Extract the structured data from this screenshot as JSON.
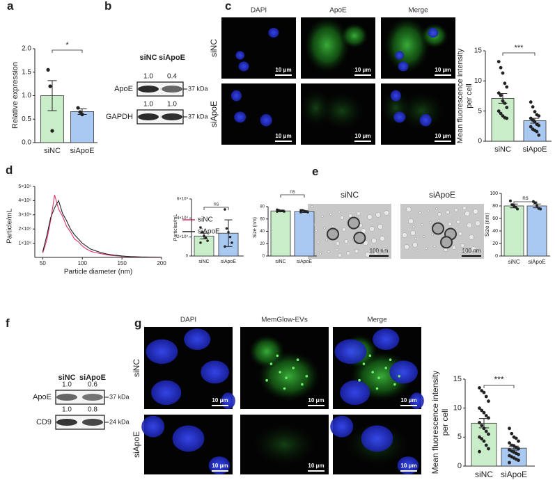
{
  "panels": [
    "a",
    "b",
    "c",
    "d",
    "e",
    "f",
    "g"
  ],
  "blot_b": {
    "lanes": [
      "siNC",
      "siApoE"
    ],
    "rows": [
      {
        "label": "ApoE",
        "values": [
          "1.0",
          "0.4"
        ],
        "marker": "37 kDa"
      },
      {
        "label": "GAPDH",
        "values": [
          "1.0",
          "1.0"
        ],
        "marker": "37 kDa"
      }
    ]
  },
  "images_c": {
    "columns": [
      "DAPI",
      "ApoE",
      "Merge"
    ],
    "rows": [
      "siNC",
      "siApoE"
    ],
    "scale_bar": "10 μm"
  },
  "images_e": {
    "labels": [
      "siNC",
      "siApoE"
    ],
    "scale_bar": "100 nm"
  },
  "blot_f": {
    "lanes": [
      "siNC",
      "siApoE"
    ],
    "rows": [
      {
        "label": "ApoE",
        "values": [
          "1.0",
          "0.6"
        ],
        "marker": "37 kDa"
      },
      {
        "label": "CD9",
        "values": [
          "1.0",
          "0.8"
        ],
        "marker": "24 kDa"
      }
    ]
  },
  "images_g": {
    "columns": [
      "DAPI",
      "MemGlow-EVs",
      "Merge"
    ],
    "rows": [
      "siNC",
      "siApoE"
    ],
    "scale_bar": "10 μm"
  },
  "chart_data": [
    {
      "type": "bar",
      "y_label": [
        "Relative expression"
      ],
      "categories": [
        "siNC",
        "siApoE"
      ],
      "colors": [
        "#c9ecc9",
        "#a9c9f3"
      ],
      "values": [
        1.0,
        0.66
      ],
      "errors": [
        0.32,
        0.06
      ],
      "points": [
        [
          1.55,
          1.2,
          0.25
        ],
        [
          0.74,
          0.65,
          0.6
        ]
      ],
      "ylim": [
        0,
        2
      ],
      "yticks": [
        {
          "value": 0,
          "label": "0.0"
        },
        {
          "value": 0.5,
          "label": "0.5"
        },
        {
          "value": 1,
          "label": "1.0"
        },
        {
          "value": 1.5,
          "label": "1.5"
        },
        {
          "value": 2,
          "label": "2.0"
        }
      ],
      "significance": "*"
    },
    {
      "type": "bar",
      "y_label": [
        "Mean fluorescence intensity",
        "per cell"
      ],
      "categories": [
        "siNC",
        "siApoE"
      ],
      "colors": [
        "#c9ecc9",
        "#a9c9f3"
      ],
      "values": [
        7.1,
        3.4
      ],
      "errors": [
        0.8,
        0.4
      ],
      "points": [
        [
          13.2,
          12.2,
          11.3,
          9.6,
          9.0,
          8.0,
          7.6,
          6.7,
          6.3,
          5.6,
          5.0,
          4.6,
          4.2,
          3.9,
          3.8
        ],
        [
          6.5,
          5.7,
          4.9,
          4.4,
          4.2,
          3.8,
          3.5,
          3.2,
          2.8,
          2.6,
          2.4,
          2.0,
          1.8,
          1.6,
          1.0
        ]
      ],
      "ylim": [
        0,
        15
      ],
      "yticks": [
        0,
        5,
        10,
        15
      ],
      "significance": "***"
    },
    {
      "type": "line",
      "x_label": "Particle diameter (nm)",
      "y_label": "Particle/mL",
      "x": [
        50,
        55,
        60,
        65,
        70,
        75,
        80,
        85,
        90,
        95,
        100,
        105,
        110,
        115,
        120,
        125,
        130,
        135,
        140,
        145,
        150,
        155,
        160,
        165,
        170,
        175,
        180,
        185,
        190,
        195,
        200
      ],
      "series": [
        {
          "name": "siNC",
          "color": "#e0306f",
          "values": [
            300000,
            1200000,
            2600000,
            4400000,
            3400000,
            2900000,
            2200000,
            1800000,
            1300000,
            1100000,
            800000,
            600000,
            450000,
            350000,
            300000,
            250000,
            200000,
            150000,
            120000,
            100000,
            80000,
            60000,
            50000,
            40000,
            30000,
            20000,
            20000,
            10000,
            10000,
            10000,
            0
          ]
        },
        {
          "name": "siApoE",
          "color": "#222222",
          "values": [
            400000,
            1500000,
            2800000,
            3500000,
            4000000,
            3100000,
            2600000,
            2000000,
            1600000,
            1300000,
            1000000,
            800000,
            600000,
            500000,
            400000,
            320000,
            250000,
            200000,
            160000,
            130000,
            100000,
            80000,
            60000,
            50000,
            40000,
            30000,
            30000,
            20000,
            20000,
            10000,
            10000
          ]
        }
      ],
      "xlim": [
        40,
        200
      ],
      "xticks": [
        50,
        100,
        150,
        200
      ],
      "ylim": [
        0,
        5000000
      ],
      "yticks": [
        {
          "value": 1000000,
          "label": "1×10⁶"
        },
        {
          "value": 2000000,
          "label": "2×10⁶"
        },
        {
          "value": 3000000,
          "label": "3×10⁶"
        },
        {
          "value": 4000000,
          "label": "4×10⁶"
        },
        {
          "value": 5000000,
          "label": "5×10⁶"
        }
      ]
    },
    {
      "type": "bar",
      "y_label": [
        "Particles/mL"
      ],
      "categories": [
        "siNC",
        "siApoE"
      ],
      "colors": [
        "#c9ecc9",
        "#a9c9f3"
      ],
      "values": [
        210000000,
        240000000
      ],
      "errors": [
        30000000,
        140000000
      ],
      "points": [
        [
          300000000,
          250000000,
          210000000,
          190000000,
          160000000,
          140000000
        ],
        [
          490000000,
          290000000,
          250000000,
          200000000,
          140000000,
          100000000
        ]
      ],
      "ylim": [
        0,
        600000000
      ],
      "yticks": [
        0,
        {
          "value": 200000000,
          "label": "2×10⁸"
        },
        {
          "value": 400000000,
          "label": "4×10⁸"
        },
        {
          "value": 600000000,
          "label": "6×10⁸"
        }
      ],
      "significance": "ns"
    },
    {
      "type": "bar",
      "y_label": [
        "Size (nm)"
      ],
      "categories": [
        "siNC",
        "siApoE"
      ],
      "colors": [
        "#c9ecc9",
        "#a9c9f3"
      ],
      "values": [
        73,
        72
      ],
      "errors": [
        1.5,
        1.5
      ],
      "points": [
        [
          75,
          74,
          73,
          73,
          72,
          72
        ],
        [
          74,
          74,
          73,
          72,
          71,
          71
        ]
      ],
      "ylim": [
        0,
        80
      ],
      "yticks": [
        0,
        20,
        40,
        60,
        80
      ],
      "significance": "ns"
    },
    {
      "type": "bar",
      "y_label": [
        "Size (nm)"
      ],
      "categories": [
        "siNC",
        "siApoE"
      ],
      "colors": [
        "#c9ecc9",
        "#a9c9f3"
      ],
      "values": [
        80,
        80
      ],
      "errors": [
        3,
        3
      ],
      "points": [
        [
          88,
          82,
          80,
          78,
          75
        ],
        [
          87,
          85,
          80,
          76,
          75
        ]
      ],
      "ylim": [
        0,
        100
      ],
      "yticks": [
        0,
        20,
        40,
        60,
        80,
        100
      ],
      "significance": "ns"
    },
    {
      "type": "bar",
      "y_label": [
        "Mean fluorescence intensity",
        "per cell"
      ],
      "categories": [
        "siNC",
        "siApoE"
      ],
      "colors": [
        "#c9ecc9",
        "#a9c9f3"
      ],
      "values": [
        7.4,
        3.1
      ],
      "errors": [
        0.8,
        0.35
      ],
      "points": [
        [
          13.5,
          13,
          12.7,
          12,
          11.2,
          10,
          9.6,
          9.2,
          8.7,
          8.3,
          7.5,
          7,
          6.5,
          6,
          5.5,
          5,
          4.7,
          4.3,
          3.6,
          3,
          2.5
        ],
        [
          6.5,
          5.6,
          5,
          4.8,
          4.3,
          4,
          3.6,
          3.5,
          3.2,
          3,
          2.8,
          2.6,
          2.4,
          2.2,
          2,
          1.8,
          1.6,
          1.4,
          1.2,
          1,
          0.6
        ]
      ],
      "ylim": [
        0,
        15
      ],
      "yticks": [
        0,
        5,
        10,
        15
      ],
      "significance": "***"
    }
  ]
}
